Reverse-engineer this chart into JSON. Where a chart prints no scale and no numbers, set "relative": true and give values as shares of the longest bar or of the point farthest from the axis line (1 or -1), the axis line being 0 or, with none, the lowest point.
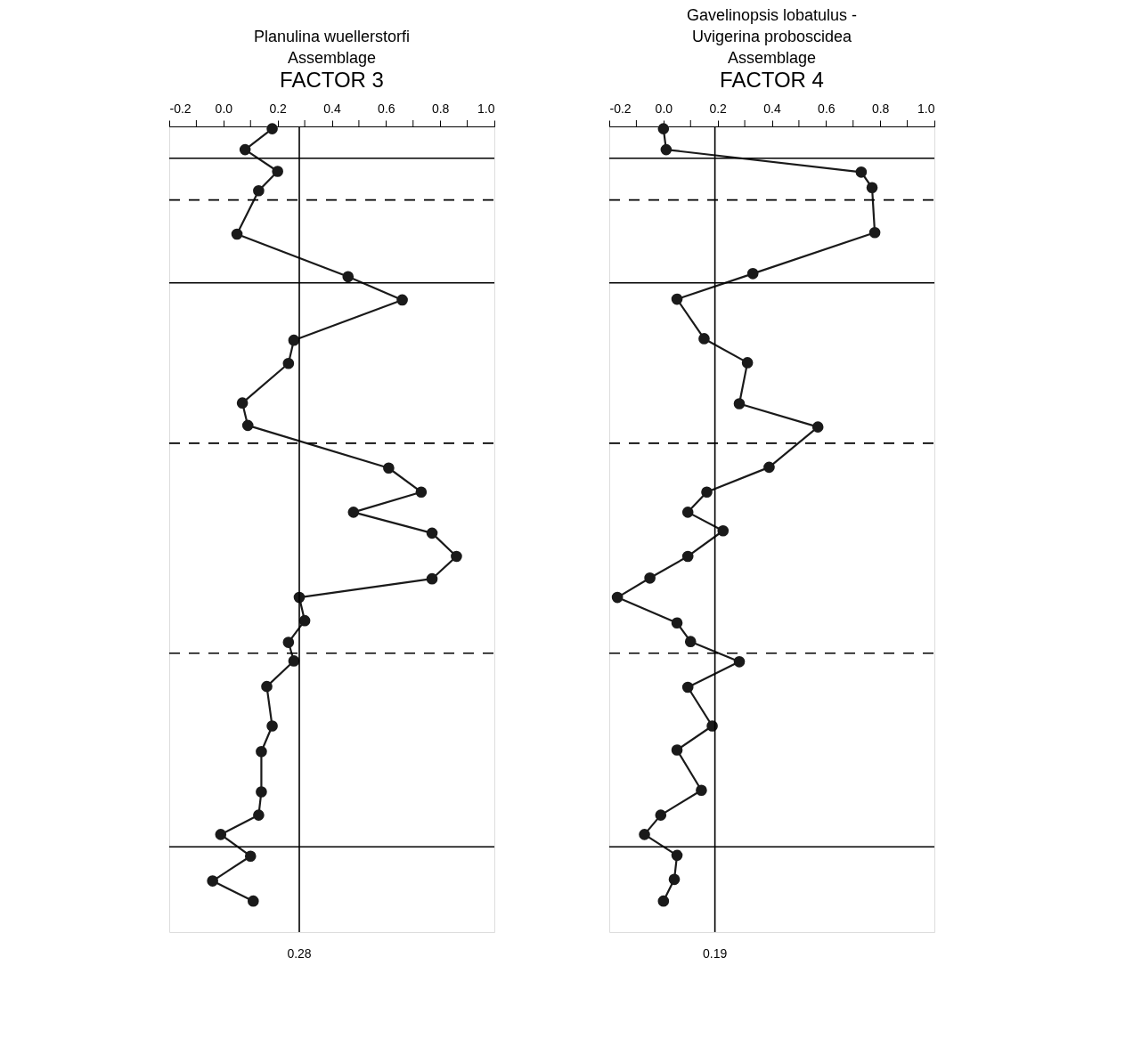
{
  "chart_data": [
    {
      "type": "line",
      "title": "Planulina wuellerstorfi Assemblage",
      "subtitle": "FACTOR 3",
      "relative": true,
      "tick_labels": "x",
      "marker": "circle",
      "line_style": "solid",
      "grid": false,
      "xlim": [
        -0.2,
        1.0
      ],
      "xticks": [
        -0.2,
        {
          "value": -0.1,
          "label": null
        },
        {
          "value": 0,
          "label": "0.0"
        },
        {
          "value": 0.1,
          "label": null
        },
        0.2,
        {
          "value": 0.3,
          "label": null
        },
        0.4,
        {
          "value": 0.5,
          "label": null
        },
        0.6,
        {
          "value": 0.7,
          "label": null
        },
        0.8,
        {
          "value": 0.9,
          "label": null
        },
        {
          "value": 1.0,
          "label": "1.0"
        }
      ],
      "series": [
        {
          "color": "#1a1a1a",
          "x": [
            0.18,
            0.08,
            0.2,
            0.13,
            0.05,
            0.46,
            0.66,
            0.26,
            0.24,
            0.07,
            0.09,
            0.61,
            0.73,
            0.48,
            0.77,
            0.86,
            0.77,
            0.28,
            0.3,
            0.24,
            0.26,
            0.16,
            0.18,
            0.14,
            0.14,
            0.13,
            -0.01,
            0.1,
            -0.04,
            0.11
          ],
          "values": [
            -0.003,
            -0.03,
            -0.058,
            -0.083,
            -0.139,
            -0.194,
            -0.224,
            -0.276,
            -0.306,
            -0.357,
            -0.386,
            -0.441,
            -0.472,
            -0.498,
            -0.525,
            -0.555,
            -0.584,
            -0.608,
            -0.638,
            -0.666,
            -0.69,
            -0.723,
            -0.774,
            -0.807,
            -0.859,
            -0.889,
            -0.914,
            -0.942,
            -0.974,
            -1.0
          ]
        }
      ],
      "ref_lines": [
        {
          "axis": "x",
          "value": 0.28,
          "label": "0.28"
        },
        {
          "axis": "y",
          "value": -0.041,
          "line_style": "solid"
        },
        {
          "axis": "y",
          "value": -0.095,
          "line_style": "dashed"
        },
        {
          "axis": "y",
          "value": -0.202,
          "line_style": "solid"
        },
        {
          "axis": "y",
          "value": -0.409,
          "line_style": "dashed"
        },
        {
          "axis": "y",
          "value": -0.68,
          "line_style": "dashed"
        },
        {
          "axis": "y",
          "value": -0.93,
          "line_style": "solid"
        }
      ]
    },
    {
      "type": "line",
      "title": "Gavelinopsis lobatulus - Uvigerina proboscidea Assemblage",
      "subtitle": "FACTOR 4",
      "relative": true,
      "tick_labels": "x",
      "marker": "circle",
      "line_style": "solid",
      "grid": false,
      "xlim": [
        -0.2,
        1.0
      ],
      "xticks": [
        -0.2,
        {
          "value": -0.1,
          "label": null
        },
        {
          "value": 0,
          "label": "0.0"
        },
        {
          "value": 0.1,
          "label": null
        },
        0.2,
        {
          "value": 0.3,
          "label": null
        },
        0.4,
        {
          "value": 0.5,
          "label": null
        },
        0.6,
        {
          "value": 0.7,
          "label": null
        },
        0.8,
        {
          "value": 0.9,
          "label": null
        },
        {
          "value": 1.0,
          "label": "1.0"
        }
      ],
      "series": [
        {
          "color": "#1a1a1a",
          "x": [
            0.0,
            0.01,
            0.73,
            0.77,
            0.78,
            0.33,
            0.05,
            0.15,
            0.31,
            0.28,
            0.57,
            0.39,
            0.16,
            0.09,
            0.22,
            0.09,
            -0.05,
            -0.17,
            0.05,
            0.1,
            0.28,
            0.09,
            0.18,
            0.05,
            0.14,
            -0.01,
            -0.07,
            0.05,
            0.04,
            0.0
          ],
          "values": [
            -0.003,
            -0.03,
            -0.059,
            -0.079,
            -0.137,
            -0.19,
            -0.223,
            -0.274,
            -0.305,
            -0.358,
            -0.388,
            -0.44,
            -0.472,
            -0.498,
            -0.522,
            -0.555,
            -0.583,
            -0.608,
            -0.641,
            -0.665,
            -0.691,
            -0.724,
            -0.774,
            -0.805,
            -0.857,
            -0.889,
            -0.914,
            -0.941,
            -0.972,
            -1.0
          ]
        }
      ],
      "ref_lines": [
        {
          "axis": "x",
          "value": 0.19,
          "label": "0.19"
        },
        {
          "axis": "y",
          "value": -0.041,
          "line_style": "solid"
        },
        {
          "axis": "y",
          "value": -0.095,
          "line_style": "dashed"
        },
        {
          "axis": "y",
          "value": -0.202,
          "line_style": "solid"
        },
        {
          "axis": "y",
          "value": -0.409,
          "line_style": "dashed"
        },
        {
          "axis": "y",
          "value": -0.68,
          "line_style": "dashed"
        },
        {
          "axis": "y",
          "value": -0.93,
          "line_style": "solid"
        }
      ]
    }
  ]
}
